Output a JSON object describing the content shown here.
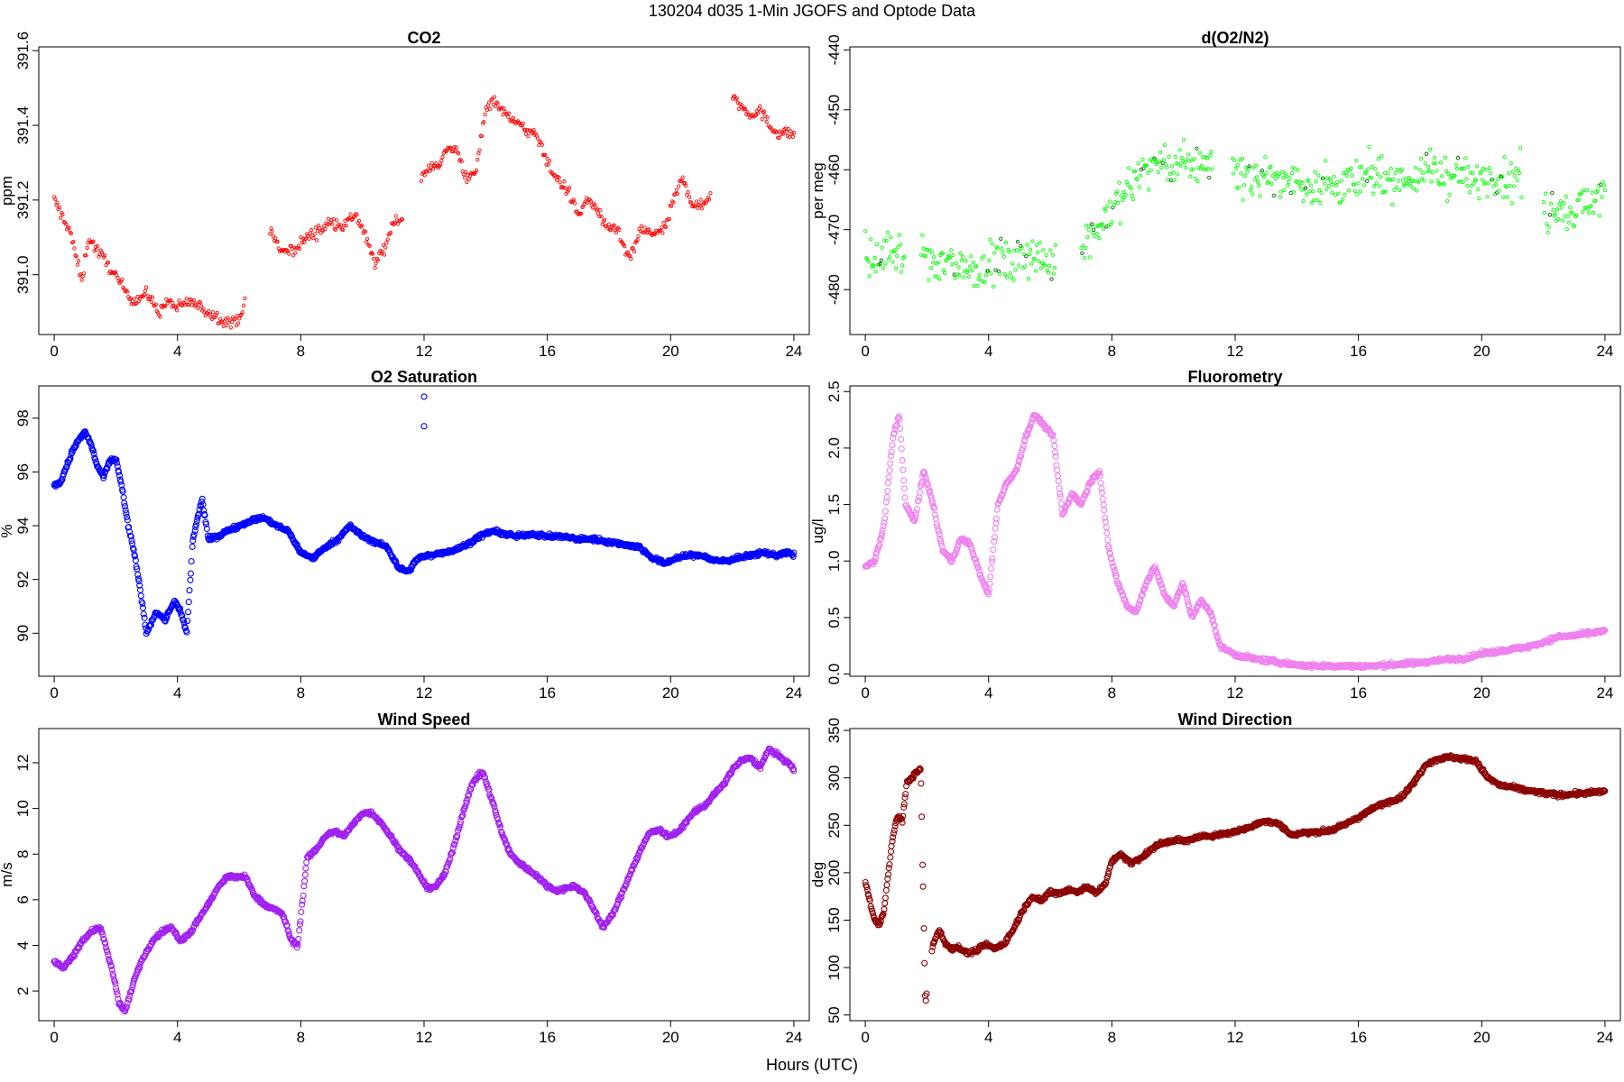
{
  "figure": {
    "title": "130204   d035   1-Min  JGOFS and Optode Data",
    "xlabel": "Hours (UTC)"
  },
  "chart_data": [
    {
      "id": "co2",
      "type": "scatter",
      "title": "CO2",
      "ylabel": "ppm",
      "color": "#ff0000",
      "marker_size": "small",
      "xlabel": "Hours (UTC)",
      "xlim": [
        -0.5,
        24.5
      ],
      "xticks": [
        0,
        4,
        8,
        12,
        16,
        20,
        24
      ],
      "ylim": [
        390.84,
        391.61
      ],
      "yticks": [
        391.0,
        391.2,
        391.4,
        391.6
      ],
      "ytick_labels": [
        "391.0",
        "391.2",
        "391.4",
        "391.6"
      ],
      "gaps": [
        [
          6.2,
          7.0
        ],
        [
          11.3,
          11.9
        ],
        [
          21.3,
          22.0
        ]
      ],
      "x": [
        0.0,
        0.3,
        0.5,
        0.7,
        0.9,
        1.1,
        1.8,
        2.2,
        2.6,
        3.0,
        3.4,
        3.7,
        4.0,
        4.4,
        4.8,
        5.2,
        5.5,
        5.8,
        6.1,
        7.0,
        7.4,
        7.8,
        8.2,
        8.6,
        9.0,
        9.4,
        9.8,
        10.1,
        10.4,
        10.7,
        11.0,
        11.3,
        11.9,
        12.2,
        12.5,
        12.8,
        13.1,
        13.4,
        13.7,
        14.0,
        14.3,
        14.6,
        14.9,
        15.2,
        15.5,
        15.8,
        16.1,
        16.4,
        16.7,
        17.0,
        17.3,
        17.6,
        17.9,
        18.2,
        18.5,
        18.7,
        19.0,
        19.4,
        19.8,
        20.1,
        20.4,
        20.7,
        21.0,
        21.3,
        22.0,
        22.3,
        22.6,
        22.9,
        23.2,
        23.5,
        23.8,
        24.0
      ],
      "y": [
        391.2,
        391.15,
        391.12,
        391.05,
        390.98,
        391.1,
        391.02,
        390.97,
        390.93,
        390.95,
        390.9,
        390.93,
        390.91,
        390.93,
        390.91,
        390.89,
        390.88,
        390.87,
        390.9,
        391.12,
        391.06,
        391.07,
        391.1,
        391.12,
        391.14,
        391.13,
        391.16,
        391.1,
        391.03,
        391.07,
        391.14,
        391.15,
        391.25,
        391.29,
        391.3,
        391.34,
        391.33,
        391.25,
        391.28,
        391.45,
        391.47,
        391.43,
        391.42,
        391.39,
        391.38,
        391.35,
        391.28,
        391.25,
        391.22,
        391.16,
        391.2,
        391.18,
        391.12,
        391.13,
        391.07,
        391.04,
        391.12,
        391.11,
        391.12,
        391.2,
        391.26,
        391.19,
        391.18,
        391.22,
        391.48,
        391.45,
        391.43,
        391.44,
        391.4,
        391.38,
        391.38,
        391.38
      ]
    },
    {
      "id": "do2n2",
      "type": "scatter",
      "title": "d(O2/N2)",
      "ylabel": "per meg",
      "color": "#00ff00",
      "marker_size": "small",
      "xlabel": "Hours (UTC)",
      "xlim": [
        -0.5,
        24.5
      ],
      "xticks": [
        0,
        4,
        8,
        12,
        16,
        20,
        24
      ],
      "ylim": [
        -487.5,
        -439.5
      ],
      "yticks": [
        -480,
        -470,
        -460,
        -450,
        -440
      ],
      "ytick_labels": [
        "-480",
        "-470",
        "-460",
        "-450",
        "-440"
      ],
      "gaps": [
        [
          1.3,
          1.8
        ],
        [
          6.2,
          7.0
        ],
        [
          11.3,
          11.9
        ],
        [
          21.3,
          22.0
        ]
      ],
      "x": [
        0.0,
        0.4,
        0.8,
        1.2,
        1.8,
        2.3,
        2.8,
        3.3,
        3.8,
        4.3,
        4.8,
        5.3,
        5.8,
        6.1,
        7.0,
        7.5,
        8.0,
        8.5,
        9.0,
        9.5,
        10.0,
        10.5,
        11.0,
        11.9,
        12.4,
        12.9,
        13.4,
        13.9,
        14.4,
        14.9,
        15.4,
        15.9,
        16.4,
        16.9,
        17.4,
        17.9,
        18.4,
        18.9,
        19.4,
        19.9,
        20.4,
        20.9,
        21.2,
        22.0,
        22.5,
        23.0,
        23.5,
        24.0
      ],
      "y": [
        -474,
        -476,
        -473,
        -475,
        -474,
        -476,
        -475,
        -477,
        -476,
        -475,
        -476,
        -474,
        -475,
        -476,
        -472,
        -470,
        -467,
        -463,
        -460,
        -459,
        -460,
        -459,
        -459,
        -460,
        -461,
        -462,
        -461,
        -462,
        -463,
        -462,
        -463,
        -462,
        -461,
        -461,
        -462,
        -461,
        -460,
        -461,
        -461,
        -462,
        -461,
        -462,
        -461,
        -467,
        -466,
        -467,
        -465,
        -464
      ],
      "spread": 4.5
    },
    {
      "id": "o2sat",
      "type": "scatter",
      "title": "O2 Saturation",
      "ylabel": "%",
      "color": "#0000ff",
      "marker_size": "large",
      "xlabel": "Hours (UTC)",
      "xlim": [
        -0.5,
        24.5
      ],
      "xticks": [
        0,
        4,
        8,
        12,
        16,
        20,
        24
      ],
      "ylim": [
        88.4,
        99.2
      ],
      "yticks": [
        90,
        92,
        94,
        96,
        98
      ],
      "ytick_labels": [
        "90",
        "92",
        "94",
        "96",
        "98"
      ],
      "x": [
        0.0,
        0.2,
        0.4,
        0.6,
        0.8,
        1.0,
        1.2,
        1.4,
        1.6,
        1.8,
        2.0,
        2.2,
        2.4,
        2.6,
        2.8,
        3.0,
        3.3,
        3.6,
        3.9,
        4.1,
        4.3,
        4.5,
        4.8,
        5.0,
        5.3,
        5.6,
        6.0,
        6.4,
        6.8,
        7.2,
        7.6,
        8.0,
        8.4,
        8.8,
        9.2,
        9.6,
        10.0,
        10.4,
        10.8,
        11.2,
        11.5,
        11.8,
        12.2,
        12.6,
        13.0,
        13.4,
        13.8,
        14.2,
        14.6,
        15.0,
        15.5,
        16.0,
        16.5,
        17.0,
        17.5,
        18.0,
        18.5,
        19.0,
        19.4,
        19.8,
        20.2,
        20.6,
        21.0,
        21.4,
        21.8,
        22.2,
        22.6,
        23.0,
        23.4,
        23.8,
        24.0
      ],
      "y": [
        95.5,
        95.6,
        96.2,
        96.8,
        97.2,
        97.5,
        97.0,
        96.2,
        95.8,
        96.4,
        96.5,
        95.4,
        94.0,
        93.0,
        91.5,
        90.0,
        90.8,
        90.5,
        91.2,
        90.8,
        90.0,
        93.5,
        95.0,
        93.5,
        93.6,
        93.8,
        94.0,
        94.2,
        94.3,
        94.0,
        93.8,
        93.0,
        92.8,
        93.2,
        93.5,
        94.0,
        93.6,
        93.4,
        93.2,
        92.4,
        92.3,
        92.8,
        92.9,
        93.0,
        93.1,
        93.3,
        93.6,
        93.8,
        93.7,
        93.6,
        93.7,
        93.6,
        93.6,
        93.5,
        93.5,
        93.4,
        93.3,
        93.2,
        92.8,
        92.6,
        92.8,
        92.9,
        92.9,
        92.7,
        92.7,
        92.8,
        92.9,
        93.0,
        92.9,
        93.0,
        92.9
      ],
      "outliers": [
        [
          12.0,
          98.8
        ],
        [
          12.0,
          97.7
        ]
      ]
    },
    {
      "id": "fluor",
      "type": "scatter",
      "title": "Fluorometry",
      "ylabel": "ug/l",
      "color": "#ee82ee",
      "marker_size": "large",
      "xlabel": "Hours (UTC)",
      "xlim": [
        -0.5,
        24.5
      ],
      "xticks": [
        0,
        4,
        8,
        12,
        16,
        20,
        24
      ],
      "ylim": [
        -0.02,
        2.55
      ],
      "yticks": [
        0.0,
        0.5,
        1.0,
        1.5,
        2.0,
        2.5
      ],
      "ytick_labels": [
        "0.0",
        "0.5",
        "1.0",
        "1.5",
        "2.0",
        "2.5"
      ],
      "x": [
        0.0,
        0.3,
        0.6,
        0.9,
        1.1,
        1.3,
        1.6,
        1.9,
        2.2,
        2.5,
        2.8,
        3.1,
        3.4,
        3.7,
        4.0,
        4.3,
        4.6,
        4.9,
        5.2,
        5.5,
        5.8,
        6.1,
        6.4,
        6.7,
        7.0,
        7.3,
        7.6,
        7.9,
        8.2,
        8.5,
        8.8,
        9.1,
        9.4,
        9.7,
        10.0,
        10.3,
        10.6,
        10.9,
        11.2,
        11.5,
        12.0,
        12.5,
        13.0,
        13.5,
        14.0,
        14.5,
        15.0,
        15.5,
        16.0,
        16.5,
        17.0,
        17.5,
        18.0,
        18.5,
        19.0,
        19.5,
        20.0,
        20.5,
        21.0,
        21.5,
        22.0,
        22.5,
        23.0,
        23.5,
        24.0
      ],
      "y": [
        0.95,
        1.0,
        1.3,
        2.1,
        2.3,
        1.5,
        1.35,
        1.8,
        1.5,
        1.1,
        1.0,
        1.2,
        1.15,
        0.9,
        0.7,
        1.5,
        1.7,
        1.8,
        2.1,
        2.3,
        2.2,
        2.1,
        1.4,
        1.6,
        1.5,
        1.7,
        1.8,
        1.1,
        0.8,
        0.6,
        0.55,
        0.8,
        0.95,
        0.7,
        0.6,
        0.8,
        0.5,
        0.65,
        0.55,
        0.25,
        0.17,
        0.14,
        0.12,
        0.1,
        0.08,
        0.07,
        0.07,
        0.07,
        0.07,
        0.07,
        0.08,
        0.09,
        0.1,
        0.12,
        0.13,
        0.14,
        0.18,
        0.2,
        0.22,
        0.24,
        0.28,
        0.33,
        0.34,
        0.36,
        0.38
      ]
    },
    {
      "id": "wspd",
      "type": "scatter",
      "title": "Wind Speed",
      "ylabel": "m/s",
      "color": "#a020f0",
      "marker_size": "large",
      "xlabel": "Hours (UTC)",
      "xlim": [
        -0.5,
        24.5
      ],
      "xticks": [
        0,
        4,
        8,
        12,
        16,
        20,
        24
      ],
      "ylim": [
        0.7,
        13.5
      ],
      "yticks": [
        2,
        4,
        6,
        8,
        10,
        12
      ],
      "ytick_labels": [
        "2",
        "4",
        "6",
        "8",
        "10",
        "12"
      ],
      "x": [
        0.0,
        0.3,
        0.6,
        0.9,
        1.2,
        1.5,
        1.7,
        1.9,
        2.1,
        2.3,
        2.6,
        2.9,
        3.2,
        3.5,
        3.8,
        4.1,
        4.4,
        4.7,
        5.0,
        5.3,
        5.6,
        5.9,
        6.2,
        6.5,
        6.8,
        7.1,
        7.4,
        7.7,
        7.9,
        8.2,
        8.5,
        8.8,
        9.1,
        9.4,
        9.7,
        10.0,
        10.3,
        10.6,
        10.9,
        11.2,
        11.5,
        11.8,
        12.1,
        12.4,
        12.7,
        13.0,
        13.3,
        13.6,
        13.9,
        14.2,
        14.5,
        14.8,
        15.1,
        15.4,
        15.7,
        16.0,
        16.3,
        16.6,
        16.9,
        17.2,
        17.5,
        17.8,
        18.1,
        18.4,
        18.7,
        19.0,
        19.3,
        19.6,
        19.9,
        20.2,
        20.5,
        20.8,
        21.1,
        21.4,
        21.7,
        22.0,
        22.3,
        22.6,
        22.9,
        23.2,
        23.5,
        23.8,
        24.0
      ],
      "y": [
        3.3,
        3.0,
        3.5,
        4.2,
        4.6,
        4.8,
        3.8,
        2.8,
        1.5,
        1.1,
        2.5,
        3.5,
        4.2,
        4.6,
        4.8,
        4.2,
        4.5,
        5.2,
        5.8,
        6.5,
        7.0,
        7.0,
        7.0,
        6.2,
        5.8,
        5.6,
        5.4,
        4.2,
        4.0,
        7.8,
        8.2,
        8.8,
        9.0,
        8.8,
        9.3,
        9.8,
        9.8,
        9.4,
        8.8,
        8.2,
        7.8,
        7.2,
        6.5,
        6.6,
        7.2,
        8.5,
        10.0,
        11.2,
        11.6,
        10.4,
        9.0,
        8.0,
        7.6,
        7.3,
        7.0,
        6.6,
        6.4,
        6.5,
        6.6,
        6.3,
        5.6,
        4.8,
        5.3,
        6.2,
        7.2,
        8.1,
        8.9,
        9.1,
        8.8,
        8.9,
        9.4,
        9.9,
        10.1,
        10.6,
        11.0,
        11.7,
        12.1,
        12.2,
        11.8,
        12.6,
        12.3,
        12.0,
        11.7
      ]
    },
    {
      "id": "wdir",
      "type": "scatter",
      "title": "Wind Direction",
      "ylabel": "deg",
      "color": "#8b0000",
      "marker_size": "large",
      "xlabel": "Hours (UTC)",
      "xlim": [
        -0.5,
        24.5
      ],
      "xticks": [
        0,
        4,
        8,
        12,
        16,
        20,
        24
      ],
      "ylim": [
        44,
        352
      ],
      "yticks": [
        50,
        100,
        150,
        200,
        250,
        300,
        350
      ],
      "ytick_labels": [
        "50",
        "100",
        "150",
        "200",
        "250",
        "300",
        "350"
      ],
      "gaps": [
        [
          2.0,
          2.15
        ]
      ],
      "x": [
        0.0,
        0.15,
        0.3,
        0.45,
        0.6,
        0.75,
        0.9,
        1.05,
        1.2,
        1.35,
        1.5,
        1.65,
        1.8,
        1.95,
        2.05,
        2.2,
        2.4,
        2.6,
        2.8,
        3.0,
        3.3,
        3.6,
        3.9,
        4.2,
        4.5,
        4.8,
        5.1,
        5.4,
        5.7,
        6.0,
        6.3,
        6.6,
        6.9,
        7.2,
        7.5,
        7.8,
        8.0,
        8.3,
        8.6,
        8.9,
        9.2,
        9.5,
        9.8,
        10.1,
        10.4,
        10.7,
        11.0,
        11.4,
        11.8,
        12.2,
        12.6,
        13.0,
        13.4,
        13.8,
        14.2,
        14.6,
        15.0,
        15.4,
        15.8,
        16.2,
        16.6,
        17.0,
        17.4,
        17.8,
        18.2,
        18.6,
        19.0,
        19.4,
        19.8,
        20.2,
        20.6,
        21.0,
        21.4,
        21.8,
        22.2,
        22.6,
        23.0,
        23.4,
        23.8,
        24.0
      ],
      "y": [
        190,
        170,
        150,
        145,
        160,
        200,
        240,
        260,
        255,
        295,
        300,
        305,
        310,
        60,
        95,
        125,
        140,
        125,
        120,
        122,
        115,
        118,
        125,
        120,
        125,
        140,
        160,
        175,
        170,
        180,
        178,
        182,
        180,
        185,
        178,
        190,
        212,
        220,
        210,
        215,
        222,
        230,
        232,
        235,
        233,
        237,
        238,
        240,
        242,
        245,
        250,
        255,
        252,
        240,
        242,
        243,
        244,
        248,
        255,
        262,
        270,
        275,
        280,
        295,
        315,
        320,
        322,
        320,
        318,
        300,
        292,
        290,
        287,
        285,
        283,
        282,
        283,
        284,
        285,
        286
      ]
    }
  ]
}
